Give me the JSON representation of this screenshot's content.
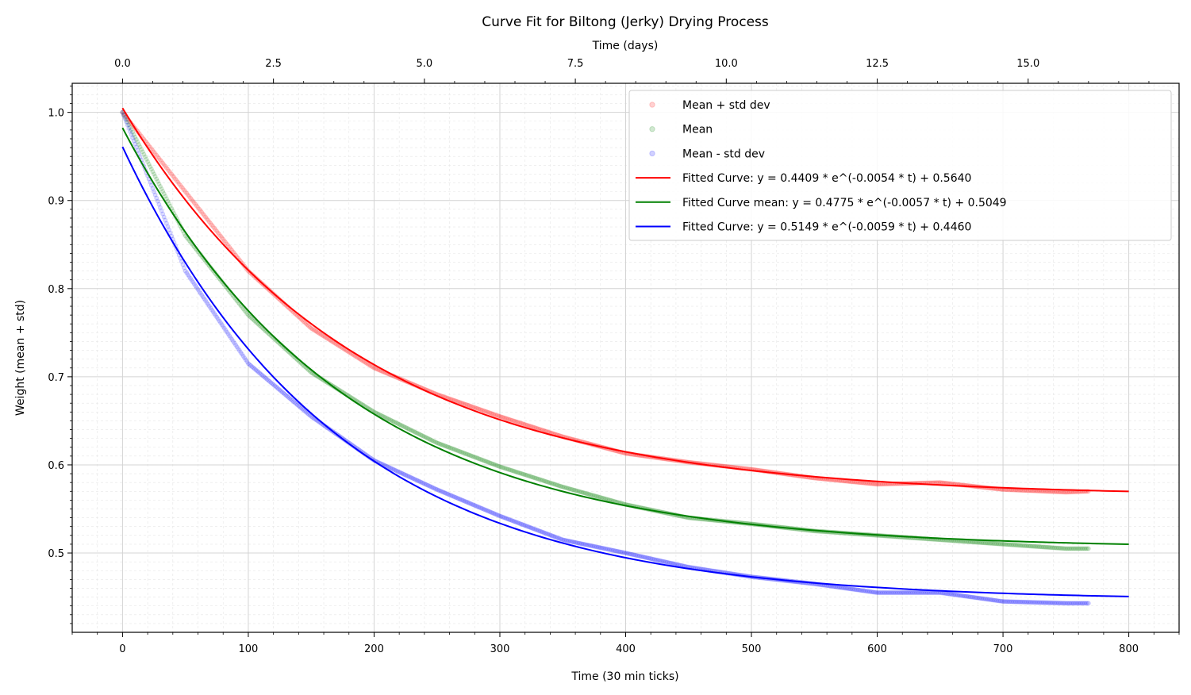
{
  "chart_data": {
    "type": "scatter",
    "title": "Curve Fit for Biltong (Jerky) Drying Process",
    "xlabel": "Time (30 min ticks)",
    "ylabel": "Weight (mean + std)",
    "top_xlabel": "Time (days)",
    "xlim": [
      -40,
      840
    ],
    "ylim": [
      0.41,
      1.033
    ],
    "x_ticks": [
      0,
      100,
      200,
      300,
      400,
      500,
      600,
      700,
      800
    ],
    "x_tick_labels": [
      "0",
      "100",
      "200",
      "300",
      "400",
      "500",
      "600",
      "700",
      "800"
    ],
    "y_ticks": [
      0.5,
      0.6,
      0.7,
      0.8,
      0.9,
      1.0
    ],
    "y_tick_labels": [
      "0.5",
      "0.6",
      "0.7",
      "0.8",
      "0.9",
      "1.0"
    ],
    "top_ticks_days": [
      0,
      2.5,
      5,
      7.5,
      10,
      12.5,
      15
    ],
    "top_tick_labels": [
      "0.0",
      "2.5",
      "5.0",
      "7.5",
      "10.0",
      "12.5",
      "15.0"
    ],
    "ticks_per_day": 48,
    "grid": true,
    "legend_position": "top-right",
    "series": [
      {
        "name": "Mean + std dev",
        "kind": "scatter",
        "color": "#ff0000",
        "x_range": [
          0,
          768
        ],
        "x": [
          0,
          50,
          100,
          150,
          200,
          250,
          300,
          350,
          400,
          450,
          500,
          550,
          600,
          650,
          700,
          750,
          768
        ],
        "y": [
          1.0,
          0.91,
          0.82,
          0.755,
          0.71,
          0.68,
          0.655,
          0.632,
          0.613,
          0.603,
          0.595,
          0.585,
          0.578,
          0.58,
          0.572,
          0.569,
          0.57
        ]
      },
      {
        "name": "Mean",
        "kind": "scatter",
        "color": "#008000",
        "x_range": [
          0,
          768
        ],
        "x": [
          0,
          50,
          100,
          150,
          200,
          250,
          300,
          350,
          400,
          450,
          500,
          550,
          600,
          650,
          700,
          750,
          768
        ],
        "y": [
          1.0,
          0.86,
          0.77,
          0.705,
          0.66,
          0.625,
          0.598,
          0.575,
          0.555,
          0.54,
          0.533,
          0.525,
          0.52,
          0.515,
          0.51,
          0.505,
          0.505
        ]
      },
      {
        "name": "Mean - std dev",
        "kind": "scatter",
        "color": "#0000ff",
        "x_range": [
          0,
          768
        ],
        "x": [
          0,
          50,
          100,
          150,
          200,
          250,
          300,
          350,
          400,
          450,
          500,
          550,
          600,
          650,
          700,
          750,
          768
        ],
        "y": [
          1.0,
          0.82,
          0.715,
          0.655,
          0.605,
          0.572,
          0.542,
          0.515,
          0.5,
          0.484,
          0.473,
          0.465,
          0.455,
          0.455,
          0.445,
          0.443,
          0.443
        ]
      },
      {
        "name": "Fitted Curve: y = 0.4409 * e^(-0.0054 * t) + 0.5640",
        "kind": "fit",
        "color": "#ff0000",
        "a": 0.4409,
        "b": -0.0054,
        "c": 0.564,
        "x_range": [
          0,
          800
        ]
      },
      {
        "name": "Fitted Curve mean: y = 0.4775 * e^(-0.0057 * t) + 0.5049",
        "kind": "fit",
        "color": "#008000",
        "a": 0.4775,
        "b": -0.0057,
        "c": 0.5049,
        "x_range": [
          0,
          800
        ]
      },
      {
        "name": "Fitted Curve: y = 0.5149 * e^(-0.0059 * t) + 0.4460",
        "kind": "fit",
        "color": "#0000ff",
        "a": 0.5149,
        "b": -0.0059,
        "c": 0.446,
        "x_range": [
          0,
          800
        ]
      }
    ]
  }
}
